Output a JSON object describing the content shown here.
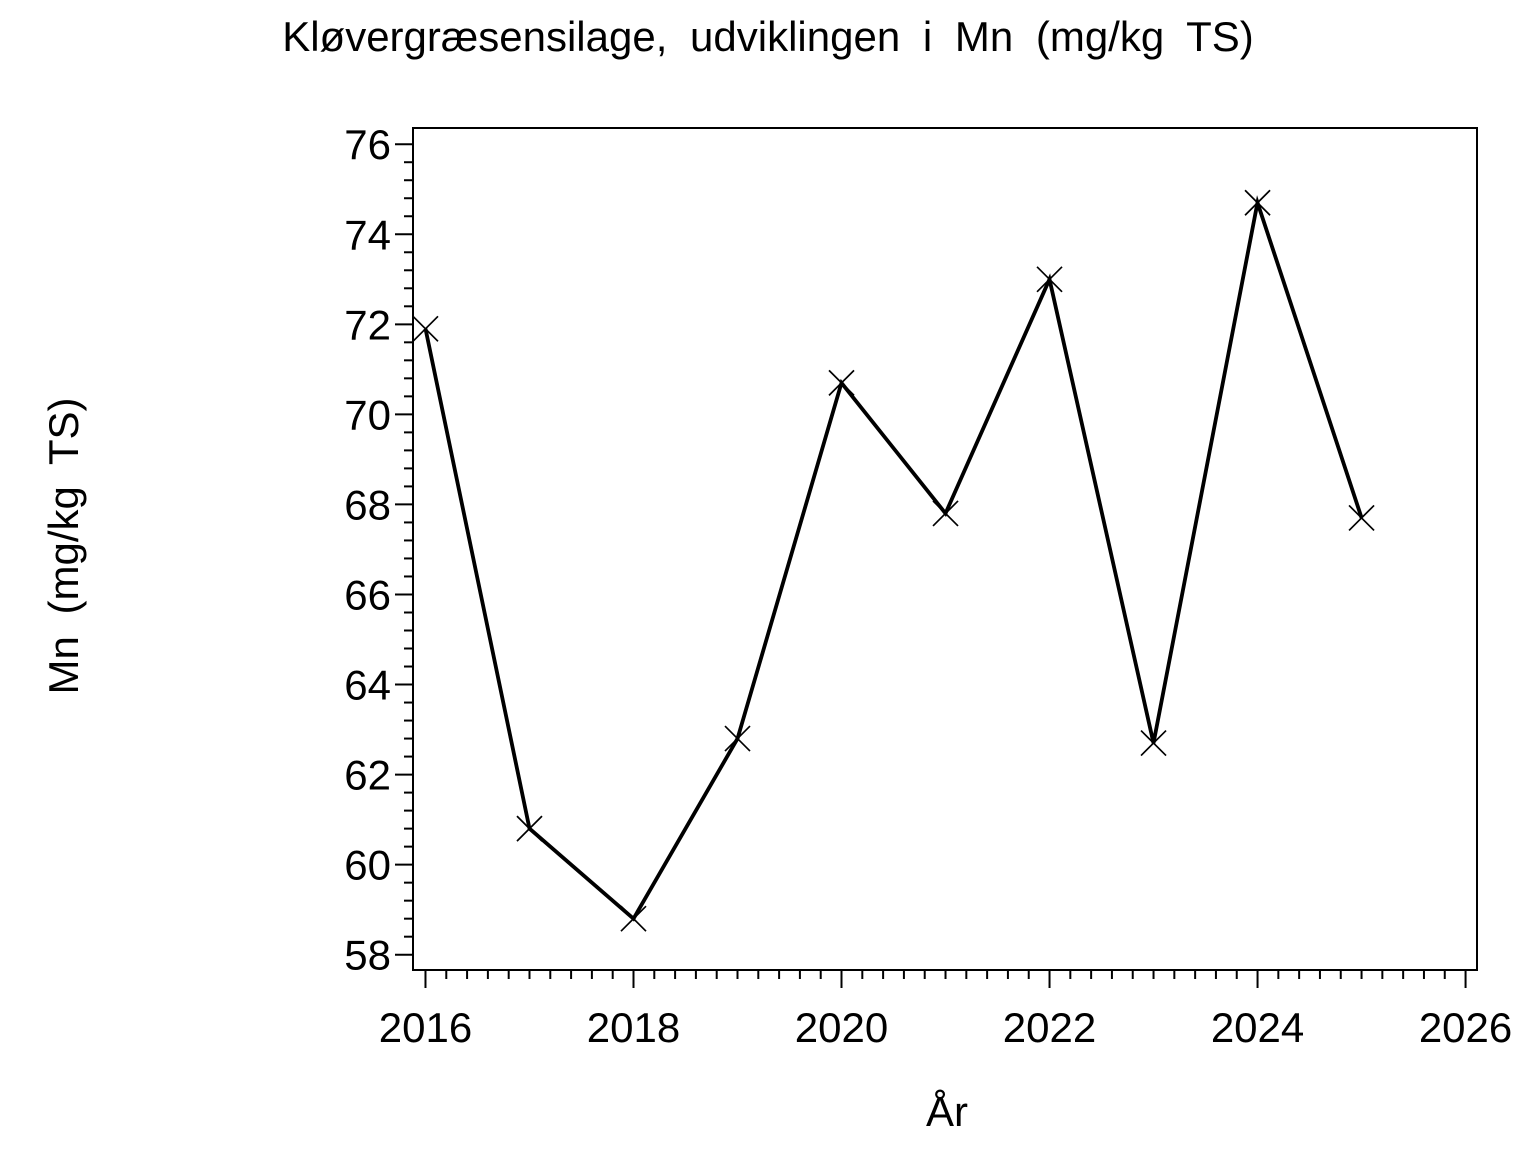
{
  "page": {
    "background_color": "#ffffff",
    "foreground_color": "#000000"
  },
  "chart_data": {
    "type": "line",
    "title": "Kløvergræsensilage, udviklingen i Mn (mg/kg TS)",
    "xlabel": "År",
    "ylabel": "Mn (mg/kg TS)",
    "x": [
      2016,
      2017,
      2018,
      2019,
      2020,
      2021,
      2022,
      2023,
      2024,
      2025
    ],
    "series": [
      {
        "name": "Mn (mg/kg TS)",
        "values": [
          71.9,
          60.8,
          58.8,
          62.8,
          70.7,
          67.8,
          73.0,
          62.7,
          74.7,
          67.7
        ]
      }
    ],
    "marker": "x-cross",
    "line_color": "#000000",
    "marker_color": "#000000",
    "xlim": [
      2015.88,
      2026.11
    ],
    "ylim": [
      57.66,
      76.36
    ],
    "x_major_ticks": [
      2016,
      2018,
      2020,
      2022,
      2024,
      2026
    ],
    "x_minor_step": 0.2,
    "y_major_ticks": [
      58,
      60,
      62,
      64,
      66,
      68,
      70,
      72,
      74,
      76
    ],
    "y_minor_step": 0.4,
    "grid": false,
    "legend_position": "none"
  }
}
